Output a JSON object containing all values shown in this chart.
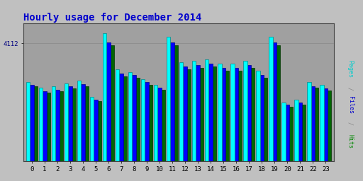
{
  "title": "Hourly usage for December 2014",
  "title_color": "#0000cc",
  "title_fontsize": 10,
  "background_color": "#c0c0c0",
  "plot_bg_color": "#a0a0a0",
  "hours": [
    0,
    1,
    2,
    3,
    4,
    5,
    6,
    7,
    8,
    9,
    10,
    11,
    12,
    13,
    14,
    15,
    16,
    17,
    18,
    19,
    20,
    21,
    22,
    23
  ],
  "hits": [
    2750,
    2550,
    2600,
    2700,
    2800,
    2250,
    4450,
    3200,
    3100,
    2850,
    2650,
    4350,
    3450,
    3500,
    3550,
    3400,
    3400,
    3500,
    3150,
    4350,
    2050,
    2150,
    2750,
    2650
  ],
  "files": [
    2650,
    2450,
    2500,
    2600,
    2680,
    2150,
    4150,
    3050,
    3000,
    2750,
    2550,
    4150,
    3300,
    3350,
    3400,
    3250,
    3250,
    3350,
    3000,
    4150,
    1980,
    2050,
    2620,
    2530
  ],
  "pages": [
    2600,
    2380,
    2440,
    2540,
    2620,
    2100,
    4050,
    2950,
    2900,
    2670,
    2490,
    4050,
    3200,
    3250,
    3300,
    3150,
    3150,
    3250,
    2900,
    4050,
    1900,
    1980,
    2550,
    2460
  ],
  "ylabel_color": "#000080",
  "ylim": [
    0,
    4800
  ],
  "ytick_val": 4112,
  "hits_color": "#00ffff",
  "hits_edge": "#008888",
  "files_color": "#0000ff",
  "files_edge": "#000088",
  "pages_color": "#006600",
  "pages_edge": "#003300",
  "bar_width": 0.3,
  "right_label_pages": "Pages",
  "right_label_files": "Files",
  "right_label_hits": "Hits",
  "right_label_sep": " / ",
  "right_label_pages_color": "#00cccc",
  "right_label_files_color": "#0000cc",
  "right_label_hits_color": "#008800"
}
